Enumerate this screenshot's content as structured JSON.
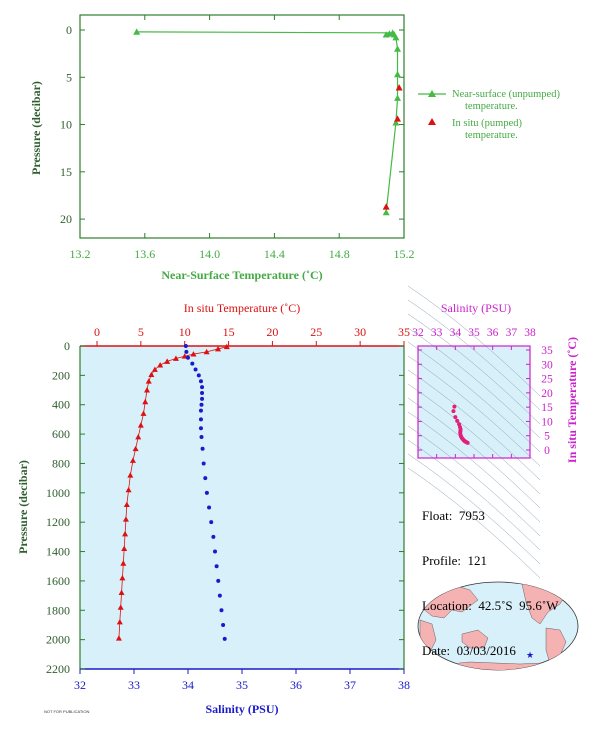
{
  "chart_data": [
    {
      "type": "line",
      "xlabel": "Near-Surface Temperature (˚C)",
      "ylabel": "Pressure (decibar)",
      "xlim": [
        13.2,
        15.2
      ],
      "ylim": [
        0,
        22
      ],
      "y_inverted": true,
      "xticks": [
        "13.2",
        "13.6",
        "14.0",
        "14.4",
        "14.8",
        "15.2"
      ],
      "yticks": [
        "0",
        "5",
        "10",
        "15",
        "20"
      ],
      "legend_position": "right",
      "series": [
        {
          "name": "Near-surface (unpumped) temperature.",
          "color": "#44bb44",
          "marker": "triangle",
          "points": [
            [
              13.55,
              0.2
            ],
            [
              15.09,
              0.5
            ],
            [
              15.11,
              0.4
            ],
            [
              15.13,
              0.3
            ],
            [
              15.14,
              0.5
            ],
            [
              15.15,
              0.8
            ],
            [
              15.16,
              2.0
            ],
            [
              15.16,
              4.7
            ],
            [
              15.16,
              7.2
            ],
            [
              15.15,
              9.8
            ],
            [
              15.09,
              19.3
            ]
          ]
        },
        {
          "name": "In situ (pumped) temperature.",
          "color": "#dd1111",
          "marker": "triangle",
          "points": [
            [
              15.09,
              18.7
            ],
            [
              15.16,
              9.4
            ],
            [
              15.17,
              6.1
            ]
          ]
        }
      ]
    },
    {
      "type": "line",
      "ylabel": "Pressure (decibar)",
      "ylim": [
        0,
        2200
      ],
      "y_inverted": true,
      "yticks": [
        "0",
        "200",
        "400",
        "600",
        "800",
        "1000",
        "1200",
        "1400",
        "1600",
        "1800",
        "2000",
        "2200"
      ],
      "top_axis": {
        "label": "In situ Temperature (˚C)",
        "range": [
          -2,
          35
        ],
        "ticks": [
          "0",
          "5",
          "10",
          "15",
          "20",
          "25",
          "30",
          "35"
        ],
        "color": "#dd1111"
      },
      "bottom_axis": {
        "label": "Salinity (PSU)",
        "range": [
          32,
          38
        ],
        "ticks": [
          "32",
          "33",
          "34",
          "35",
          "36",
          "37",
          "38"
        ],
        "color": "#1a1acc"
      },
      "series": [
        {
          "axis": "temperature",
          "color": "#dd1111",
          "marker": "triangle",
          "points": [
            [
              14.8,
              5
            ],
            [
              13.8,
              20
            ],
            [
              12.5,
              40
            ],
            [
              11.0,
              55
            ],
            [
              10.0,
              70
            ],
            [
              9.0,
              85
            ],
            [
              8.0,
              105
            ],
            [
              7.2,
              130
            ],
            [
              6.6,
              160
            ],
            [
              6.2,
              195
            ],
            [
              5.9,
              240
            ],
            [
              5.7,
              300
            ],
            [
              5.5,
              380
            ],
            [
              5.3,
              460
            ],
            [
              5.0,
              540
            ],
            [
              4.7,
              620
            ],
            [
              4.4,
              700
            ],
            [
              4.1,
              780
            ],
            [
              3.8,
              880
            ],
            [
              3.6,
              980
            ],
            [
              3.4,
              1080
            ],
            [
              3.3,
              1180
            ],
            [
              3.2,
              1280
            ],
            [
              3.1,
              1380
            ],
            [
              3.0,
              1480
            ],
            [
              2.9,
              1580
            ],
            [
              2.8,
              1680
            ],
            [
              2.7,
              1780
            ],
            [
              2.6,
              1880
            ],
            [
              2.5,
              1990
            ]
          ]
        },
        {
          "axis": "salinity",
          "color": "#1a1acc",
          "marker": "circle",
          "points": [
            [
              33.96,
              0
            ],
            [
              33.97,
              40
            ],
            [
              34.0,
              80
            ],
            [
              34.08,
              120
            ],
            [
              34.14,
              160
            ],
            [
              34.2,
              200
            ],
            [
              34.24,
              240
            ],
            [
              34.26,
              280
            ],
            [
              34.26,
              320
            ],
            [
              34.26,
              360
            ],
            [
              34.25,
              400
            ],
            [
              34.24,
              440
            ],
            [
              34.24,
              500
            ],
            [
              34.24,
              560
            ],
            [
              34.25,
              620
            ],
            [
              34.27,
              700
            ],
            [
              34.29,
              800
            ],
            [
              34.32,
              900
            ],
            [
              34.35,
              1000
            ],
            [
              34.39,
              1100
            ],
            [
              34.43,
              1200
            ],
            [
              34.47,
              1300
            ],
            [
              34.5,
              1400
            ],
            [
              34.53,
              1500
            ],
            [
              34.56,
              1600
            ],
            [
              34.59,
              1700
            ],
            [
              34.62,
              1800
            ],
            [
              34.65,
              1900
            ],
            [
              34.68,
              1995
            ]
          ]
        }
      ]
    },
    {
      "type": "scatter",
      "xlabel": "Salinity (PSU)",
      "ylabel": "In situ Temperature (˚C)",
      "xlim": [
        32,
        38
      ],
      "ylim": [
        -1,
        36
      ],
      "xticks": [
        "32",
        "33",
        "34",
        "35",
        "36",
        "37",
        "38"
      ],
      "yticks": [
        "0",
        "5",
        "10",
        "15",
        "20",
        "25",
        "30",
        "35"
      ],
      "color": "#e0207a",
      "points": [
        [
          33.95,
          15.2
        ],
        [
          33.9,
          13.6
        ],
        [
          34.0,
          11.5
        ],
        [
          34.1,
          10.2
        ],
        [
          34.2,
          9.0
        ],
        [
          34.25,
          8.0
        ],
        [
          34.28,
          7.2
        ],
        [
          34.27,
          6.6
        ],
        [
          34.26,
          6.0
        ],
        [
          34.28,
          5.3
        ],
        [
          34.31,
          4.7
        ],
        [
          34.35,
          4.2
        ],
        [
          34.4,
          3.8
        ],
        [
          34.45,
          3.4
        ],
        [
          34.5,
          3.1
        ],
        [
          34.55,
          2.9
        ],
        [
          34.6,
          2.7
        ],
        [
          34.66,
          2.5
        ]
      ]
    }
  ],
  "float_info": {
    "float": "Float:  7953",
    "profile": "Profile:  121",
    "location": "Location:  42.5˚S  95.6˚W",
    "date": "Date:  03/03/2016"
  },
  "map": {
    "ocean_color": "#d7f0fa",
    "land_color": "#f4b2b2",
    "marker_color": "#1a1acc",
    "marker": "star"
  },
  "stamp": "NOT FOR PUBLICATION"
}
